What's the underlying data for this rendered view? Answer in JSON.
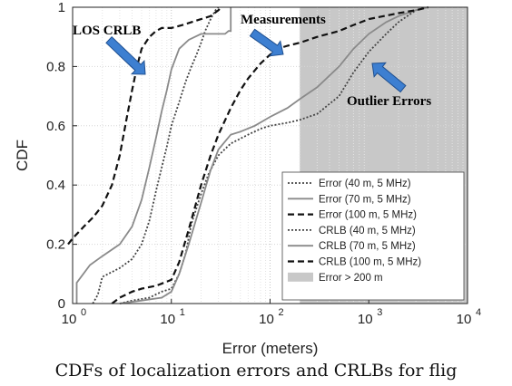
{
  "caption": "CDFs of localization errors and CRLBs for flig",
  "chart_data": {
    "type": "line",
    "xscale": "log",
    "xlim": [
      1,
      10000
    ],
    "ylim": [
      0,
      1
    ],
    "xlabel": "Error (meters)",
    "ylabel": "CDF",
    "xticks": [
      {
        "value": 1,
        "base": "10",
        "exp": "0"
      },
      {
        "value": 10,
        "base": "10",
        "exp": "1"
      },
      {
        "value": 100,
        "base": "10",
        "exp": "2"
      },
      {
        "value": 1000,
        "base": "10",
        "exp": "3"
      },
      {
        "value": 10000,
        "base": "10",
        "exp": "4"
      }
    ],
    "yticks": [
      {
        "value": 0,
        "label": "0"
      },
      {
        "value": 0.2,
        "label": "0.2"
      },
      {
        "value": 0.4,
        "label": "0.4"
      },
      {
        "value": 0.6,
        "label": "0.6"
      },
      {
        "value": 0.8,
        "label": "0.8"
      },
      {
        "value": 1,
        "label": "1"
      }
    ],
    "grid": true,
    "legend_position": "bottom-right",
    "shaded_region": {
      "x_from": 200,
      "x_to": 10000,
      "label": "Error > 200 m",
      "color": "#c8c8c8"
    },
    "series": [
      {
        "name": "Error (40 m, 5 MHz)",
        "style": "dotted",
        "color": "#444444",
        "x": [
          3,
          4,
          6,
          8,
          10,
          12,
          14,
          16,
          20,
          24,
          30,
          40,
          60,
          80,
          100,
          150,
          200,
          300,
          500,
          700,
          1000,
          1500,
          2000,
          3000,
          4000
        ],
        "y": [
          0,
          0.01,
          0.02,
          0.04,
          0.05,
          0.1,
          0.17,
          0.27,
          0.37,
          0.44,
          0.5,
          0.54,
          0.57,
          0.59,
          0.6,
          0.61,
          0.62,
          0.64,
          0.7,
          0.78,
          0.85,
          0.91,
          0.95,
          0.99,
          1.0
        ]
      },
      {
        "name": "Error (70 m, 5 MHz)",
        "style": "solid",
        "color": "#8a8a8a",
        "x": [
          3,
          5,
          8,
          10,
          12,
          15,
          20,
          25,
          30,
          40,
          50,
          70,
          100,
          150,
          200,
          300,
          500,
          700,
          1000,
          1500,
          2000,
          3000,
          4000
        ],
        "y": [
          0,
          0.01,
          0.02,
          0.04,
          0.1,
          0.2,
          0.34,
          0.45,
          0.52,
          0.57,
          0.58,
          0.6,
          0.63,
          0.66,
          0.69,
          0.73,
          0.8,
          0.86,
          0.91,
          0.95,
          0.97,
          0.99,
          1.0
        ]
      },
      {
        "name": "Error (100 m, 5 MHz)",
        "style": "dashed",
        "color": "#111111",
        "x": [
          2.5,
          3,
          4,
          5,
          7,
          10,
          12,
          15,
          20,
          25,
          30,
          40,
          50,
          60,
          80,
          100,
          120,
          150,
          200,
          300,
          500,
          700,
          1000,
          2000,
          3000,
          4000
        ],
        "y": [
          0,
          0.02,
          0.04,
          0.05,
          0.06,
          0.08,
          0.14,
          0.25,
          0.4,
          0.5,
          0.57,
          0.66,
          0.72,
          0.76,
          0.81,
          0.84,
          0.86,
          0.87,
          0.88,
          0.9,
          0.92,
          0.94,
          0.96,
          0.98,
          0.99,
          1.0
        ]
      },
      {
        "name": "CRLB (40 m, 5 MHz)",
        "style": "dotted",
        "color": "#444444",
        "x": [
          1.6,
          1.8,
          2,
          3,
          4,
          5,
          6,
          7,
          8,
          9,
          10,
          12,
          14,
          16,
          18,
          20,
          22,
          25,
          28,
          30
        ],
        "y": [
          0,
          0.03,
          0.09,
          0.12,
          0.15,
          0.2,
          0.28,
          0.38,
          0.46,
          0.53,
          0.6,
          0.68,
          0.75,
          0.8,
          0.84,
          0.88,
          0.92,
          0.96,
          0.99,
          1.0
        ]
      },
      {
        "name": "CRLB (70 m, 5 MHz)",
        "style": "solid",
        "color": "#8a8a8a",
        "x": [
          1.1,
          1.1,
          1.5,
          2,
          3,
          4,
          5,
          6,
          7,
          8,
          9,
          10,
          12,
          15,
          20,
          25,
          30,
          35,
          38,
          40,
          40
        ],
        "y": [
          0,
          0.07,
          0.13,
          0.16,
          0.2,
          0.26,
          0.35,
          0.46,
          0.56,
          0.65,
          0.72,
          0.79,
          0.86,
          0.89,
          0.91,
          0.91,
          0.91,
          0.91,
          0.92,
          0.92,
          1.0
        ]
      },
      {
        "name": "CRLB (100 m, 5 MHz)",
        "style": "dashed",
        "color": "#111111",
        "x": [
          0.9,
          1,
          1.3,
          1.6,
          2,
          2.5,
          3,
          3.5,
          4,
          4.5,
          5,
          6,
          7,
          8,
          10,
          13,
          16,
          20,
          25,
          30,
          32
        ],
        "y": [
          0.2,
          0.22,
          0.26,
          0.29,
          0.33,
          0.4,
          0.5,
          0.62,
          0.72,
          0.8,
          0.86,
          0.9,
          0.92,
          0.93,
          0.93,
          0.94,
          0.95,
          0.96,
          0.97,
          0.99,
          1.0
        ]
      }
    ],
    "annotations": [
      {
        "label": "LOS CRLB"
      },
      {
        "label": "Measurements"
      },
      {
        "label": "Outlier Errors"
      }
    ]
  }
}
